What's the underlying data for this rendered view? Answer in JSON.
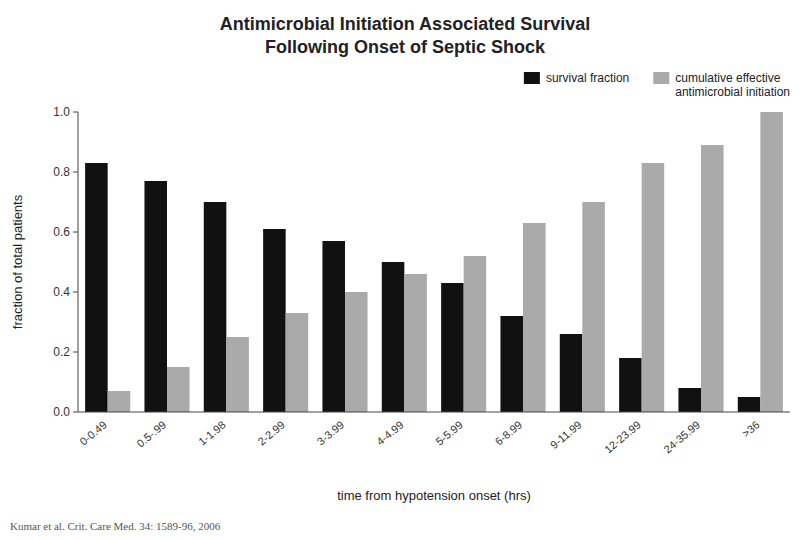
{
  "chart_data": {
    "type": "bar",
    "title": "Antimicrobial Initiation Associated Survival\nFollowing Onset of Septic Shock",
    "categories": [
      "0-0.49",
      "0.5-.99",
      "1-1.98",
      "2-2.99",
      "3-3.99",
      "4-4.99",
      "5-5.99",
      "6-8.99",
      "9-11.99",
      "12-23.99",
      "24-35.99",
      ">36"
    ],
    "series": [
      {
        "name": "survival fraction",
        "color": "#111111",
        "values": [
          0.83,
          0.77,
          0.7,
          0.61,
          0.57,
          0.5,
          0.43,
          0.32,
          0.26,
          0.18,
          0.08,
          0.05
        ]
      },
      {
        "name": "cumulative effective\nantimicrobial initiation",
        "color": "#AAAAAA",
        "values": [
          0.07,
          0.15,
          0.25,
          0.33,
          0.4,
          0.46,
          0.52,
          0.63,
          0.7,
          0.83,
          0.89,
          1.0
        ]
      }
    ],
    "ylabel": "fraction of total patients",
    "xlabel": "time from hypotension onset (hrs)",
    "ylim": [
      0.0,
      1.0
    ],
    "yticks": [
      {
        "value": 0.0,
        "label": "0.0"
      },
      0.2,
      0.4,
      0.6,
      0.8,
      {
        "value": 1.0,
        "label": "1.0"
      }
    ],
    "legend": "upper right",
    "grid": false,
    "annotations": [
      "Kumar et al. Crit. Care Med. 34: 1589-96, 2006"
    ]
  }
}
